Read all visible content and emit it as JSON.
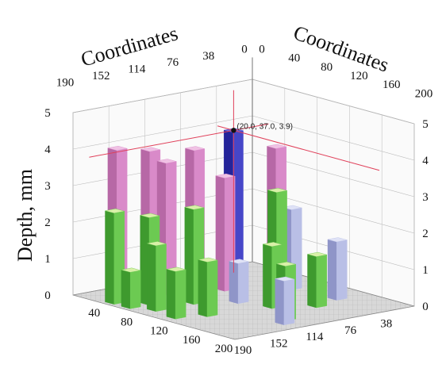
{
  "chart_data": {
    "type": "bar3d",
    "x_axis": {
      "label": "Coordinates",
      "ticks": [
        "0",
        "40",
        "80",
        "120",
        "160",
        "200"
      ],
      "range": [
        0,
        200
      ]
    },
    "y_axis": {
      "label": "Coordinates",
      "ticks": [
        "190",
        "152",
        "114",
        "76",
        "38",
        "0"
      ],
      "range": [
        0,
        190
      ]
    },
    "z_axis": {
      "label": "Depth, mm",
      "ticks": [
        "0",
        "1",
        "2",
        "3",
        "4",
        "5"
      ],
      "range": [
        0,
        5
      ]
    },
    "floor_ticks": {
      "x": [
        "40",
        "80",
        "120",
        "160",
        "200"
      ],
      "y": [
        "38",
        "76",
        "114",
        "152",
        "190"
      ]
    },
    "annotation": {
      "text": "(20.0, 37.0, 3.9)",
      "x": 20.0,
      "y": 37.0,
      "z": 3.9
    },
    "colors": {
      "high": "#3434b0",
      "upper": "#d98ac9",
      "mid": "#b9bfe6",
      "low": "#5fc24a",
      "marker_line": "#e0405a"
    },
    "bars": [
      {
        "x": 20,
        "y": 37,
        "depth": 3.9,
        "color": "blue"
      },
      {
        "x": 20,
        "y": 125,
        "depth": 3.8,
        "color": "pink"
      },
      {
        "x": 20,
        "y": 160,
        "depth": 4.0,
        "color": "pink"
      },
      {
        "x": 20,
        "y": 78,
        "depth": 3.6,
        "color": "pink"
      },
      {
        "x": 40,
        "y": 125,
        "depth": 3.6,
        "color": "pink"
      },
      {
        "x": 60,
        "y": 80,
        "depth": 3.1,
        "color": "pink"
      },
      {
        "x": 65,
        "y": 30,
        "depth": 3.7,
        "color": "pink"
      },
      {
        "x": 90,
        "y": 35,
        "depth": 2.2,
        "color": "lavender"
      },
      {
        "x": 60,
        "y": 160,
        "depth": 2.4,
        "color": "green"
      },
      {
        "x": 40,
        "y": 180,
        "depth": 2.5,
        "color": "green"
      },
      {
        "x": 80,
        "y": 170,
        "depth": 1.8,
        "color": "green"
      },
      {
        "x": 80,
        "y": 130,
        "depth": 2.6,
        "color": "green"
      },
      {
        "x": 100,
        "y": 100,
        "depth": 1.1,
        "color": "lavender"
      },
      {
        "x": 95,
        "y": 55,
        "depth": 2.8,
        "color": "green"
      },
      {
        "x": 120,
        "y": 150,
        "depth": 1.5,
        "color": "green"
      },
      {
        "x": 110,
        "y": 175,
        "depth": 1.3,
        "color": "green"
      },
      {
        "x": 130,
        "y": 90,
        "depth": 1.7,
        "color": "green"
      },
      {
        "x": 140,
        "y": 30,
        "depth": 1.6,
        "color": "lavender"
      },
      {
        "x": 150,
        "y": 60,
        "depth": 1.4,
        "color": "green"
      },
      {
        "x": 170,
        "y": 110,
        "depth": 1.5,
        "color": "green"
      },
      {
        "x": 180,
        "y": 120,
        "depth": 1.2,
        "color": "lavender"
      },
      {
        "x": 60,
        "y": 180,
        "depth": 1.0,
        "color": "green"
      }
    ]
  }
}
